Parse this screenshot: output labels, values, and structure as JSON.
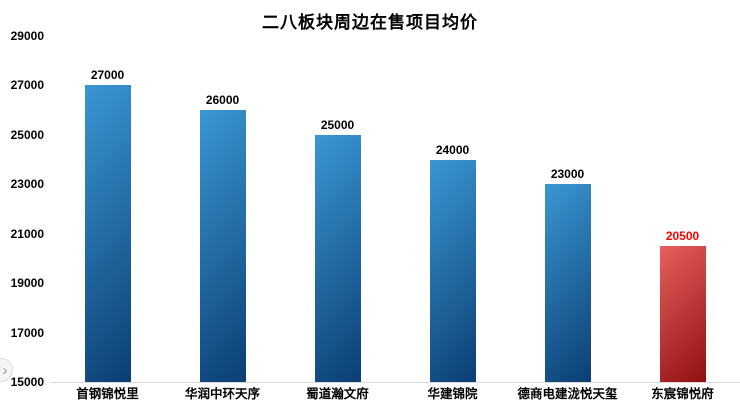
{
  "nav": {
    "arrow_symbol": "›"
  },
  "chart_data": {
    "type": "bar",
    "title": "二八板块周边在售项目均价",
    "categories": [
      "首钢锦悦里",
      "华润中环天序",
      "蜀道瀚文府",
      "华建锦院",
      "德商电建泷悦天玺",
      "东宸锦悦府"
    ],
    "values": [
      27000,
      26000,
      25000,
      24000,
      23000,
      20500
    ],
    "xlabel": "",
    "ylabel": "",
    "ylim": [
      15000,
      29000
    ],
    "yticks": [
      15000,
      17000,
      19000,
      21000,
      23000,
      25000,
      27000,
      29000
    ],
    "grid": false,
    "legend": false,
    "colors": {
      "axis_text": "#000000",
      "default_value_label": "#000000",
      "highlight_value_label": "#ff0000",
      "blue_bar_light": "#3b97d3",
      "blue_bar_dark": "#0a3e73",
      "red_bar_light": "#e85f5f",
      "red_bar_dark": "#8f0f0f"
    },
    "bars": [
      {
        "category": "首钢锦悦里",
        "value": 27000,
        "label_color": "#000000",
        "color_light": "#3b97d3",
        "color_dark": "#0a3e73"
      },
      {
        "category": "华润中环天序",
        "value": 26000,
        "label_color": "#000000",
        "color_light": "#3b97d3",
        "color_dark": "#0a3e73"
      },
      {
        "category": "蜀道瀚文府",
        "value": 25000,
        "label_color": "#000000",
        "color_light": "#3b97d3",
        "color_dark": "#0a3e73"
      },
      {
        "category": "华建锦院",
        "value": 24000,
        "label_color": "#000000",
        "color_light": "#3b97d3",
        "color_dark": "#0a3e73"
      },
      {
        "category": "德商电建泷悦天玺",
        "value": 23000,
        "label_color": "#000000",
        "color_light": "#3b97d3",
        "color_dark": "#0a3e73"
      },
      {
        "category": "东宸锦悦府",
        "value": 20500,
        "label_color": "#ff0000",
        "color_light": "#e85f5f",
        "color_dark": "#8f0f0f"
      }
    ]
  }
}
